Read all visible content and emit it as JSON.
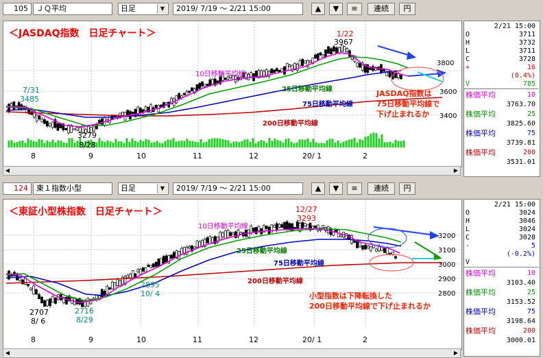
{
  "top": {
    "toolbar": {
      "code": "105",
      "name": "ＪＱ平均",
      "period": "日足",
      "range": "2019/ 7/19 〜  2/21 15:00",
      "up_label": "▲",
      "down_label": "▼",
      "menu_label": "≡",
      "continuous_label": "連続",
      "yen_label": "円"
    },
    "chart": {
      "title": "＜JASDAQ指数　日足チャート＞",
      "y_ticks": [
        "3800",
        "3600",
        "3400"
      ],
      "x_ticks": [
        "8",
        "9",
        "10",
        "11",
        "12",
        "20/ 1",
        "2"
      ],
      "labels": {
        "high_date": "1/22",
        "high_val": "3967",
        "jul_date": "7/31",
        "jul_val": "3485",
        "low_val": "3279",
        "low_date": "8/28",
        "ma10": "10日移動平均線",
        "ma25": "25日移動平均線",
        "ma75": "75日移動平均線",
        "ma200": "200日移動平均線",
        "note1": "JASDAQ指数は",
        "note2": "75日移動平均線で",
        "note3": "下げ止まれるか"
      }
    },
    "info": {
      "time": "2/21 15:00",
      "ohlc": [
        {
          "k": "O",
          "v": "3711"
        },
        {
          "k": "H",
          "v": "3732"
        },
        {
          "k": "L",
          "v": "3711"
        },
        {
          "k": "C",
          "v": "3728"
        }
      ],
      "change_sign": "+",
      "change": "16",
      "change_pct": "(0.4%)",
      "vol_key": "V",
      "vol": "785",
      "ma": [
        {
          "label": "株価平均",
          "period": "10",
          "value": "3763.70",
          "color": "#e000e0"
        },
        {
          "label": "株価平均",
          "period": "25",
          "value": "3825.60",
          "color": "#009000"
        },
        {
          "label": "株価平均",
          "period": "75",
          "value": "3739.81",
          "color": "#0000c0"
        },
        {
          "label": "株価平均",
          "period": "200",
          "value": "3531.01",
          "color": "#c00000"
        }
      ]
    }
  },
  "bottom": {
    "toolbar": {
      "code": "124",
      "name": "東１指数小型",
      "period": "日足",
      "range": "2019/ 7/19 〜  2/21 15:00",
      "up_label": "▲",
      "down_label": "▼",
      "menu_label": "≡",
      "continuous_label": "連続",
      "yen_label": "円"
    },
    "chart": {
      "title": "＜東証小型株指数　日足チャート＞",
      "y_ticks": [
        "3200",
        "3100",
        "3000",
        "2900",
        "2800"
      ],
      "x_ticks": [
        "8",
        "9",
        "10",
        "11",
        "12",
        "20/ 1",
        "2"
      ],
      "labels": {
        "high_date": "12/27",
        "high_val": "3293",
        "low1_val": "2707",
        "low1_date": "8/ 6",
        "low2_val": "2716",
        "low2_date": "8/29",
        "oct_val": "2895",
        "oct_date": "10/ 4",
        "ma10": "10日移動平均線",
        "ma25": "25日移動平均線",
        "ma75": "75日移動平均線",
        "ma200": "200日移動平均線",
        "note1": "小型指数は下降転換した",
        "note2": "200日移動平均線で下げ止まれるか"
      }
    },
    "info": {
      "time": "2/21 15:00",
      "ohlc": [
        {
          "k": "O",
          "v": "3024"
        },
        {
          "k": "H",
          "v": "3046"
        },
        {
          "k": "L",
          "v": "3024"
        },
        {
          "k": "C",
          "v": "3028"
        }
      ],
      "change_sign": "-",
      "change": "5",
      "change_pct": "(-0.2%)",
      "vol_key": "V",
      "ma": [
        {
          "label": "株価平均",
          "period": "10",
          "value": "3103.40",
          "color": "#e000e0"
        },
        {
          "label": "株価平均",
          "period": "25",
          "value": "3153.52",
          "color": "#009000"
        },
        {
          "label": "株価平均",
          "period": "75",
          "value": "3198.64",
          "color": "#0000c0"
        },
        {
          "label": "株価平均",
          "period": "200",
          "value": "3000.01",
          "color": "#c00000"
        }
      ]
    }
  },
  "colors": {
    "ma10": "#e000e0",
    "ma25": "#00a000",
    "ma75": "#0000c0",
    "ma200": "#c00000",
    "volume": "#22cc22",
    "title": "#ff0000",
    "note": "#ff2000",
    "teal": "#008b8b"
  }
}
